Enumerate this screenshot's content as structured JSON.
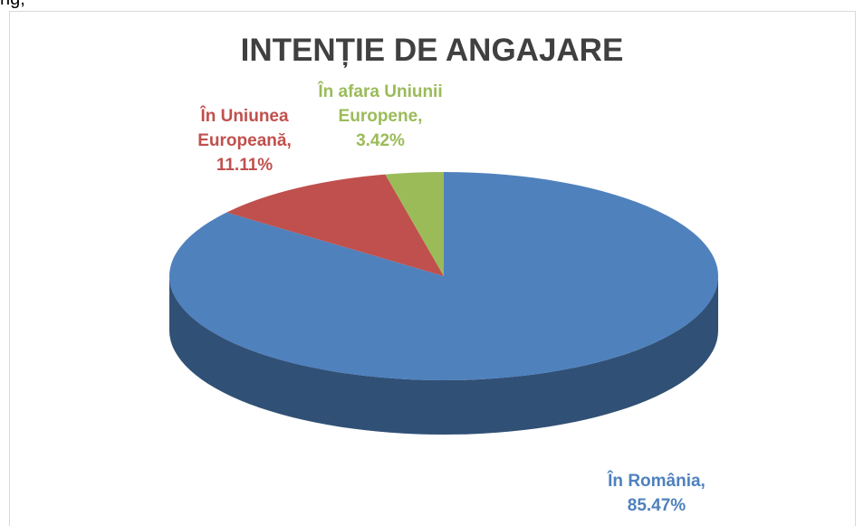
{
  "document_text": "ng,",
  "chart_data": {
    "type": "pie",
    "title": "INTENȚIE DE ANGAJARE",
    "categories": [
      "În România,",
      "În Uniunea Europeană,",
      "În afara Uniunii Europene,"
    ],
    "values": [
      85.47,
      11.11,
      3.42
    ],
    "value_labels": [
      "85.47%",
      "11.11%",
      "3.42%"
    ],
    "colors": [
      "#4f81bd",
      "#c0504d",
      "#9bbb59"
    ],
    "three_d": true
  }
}
